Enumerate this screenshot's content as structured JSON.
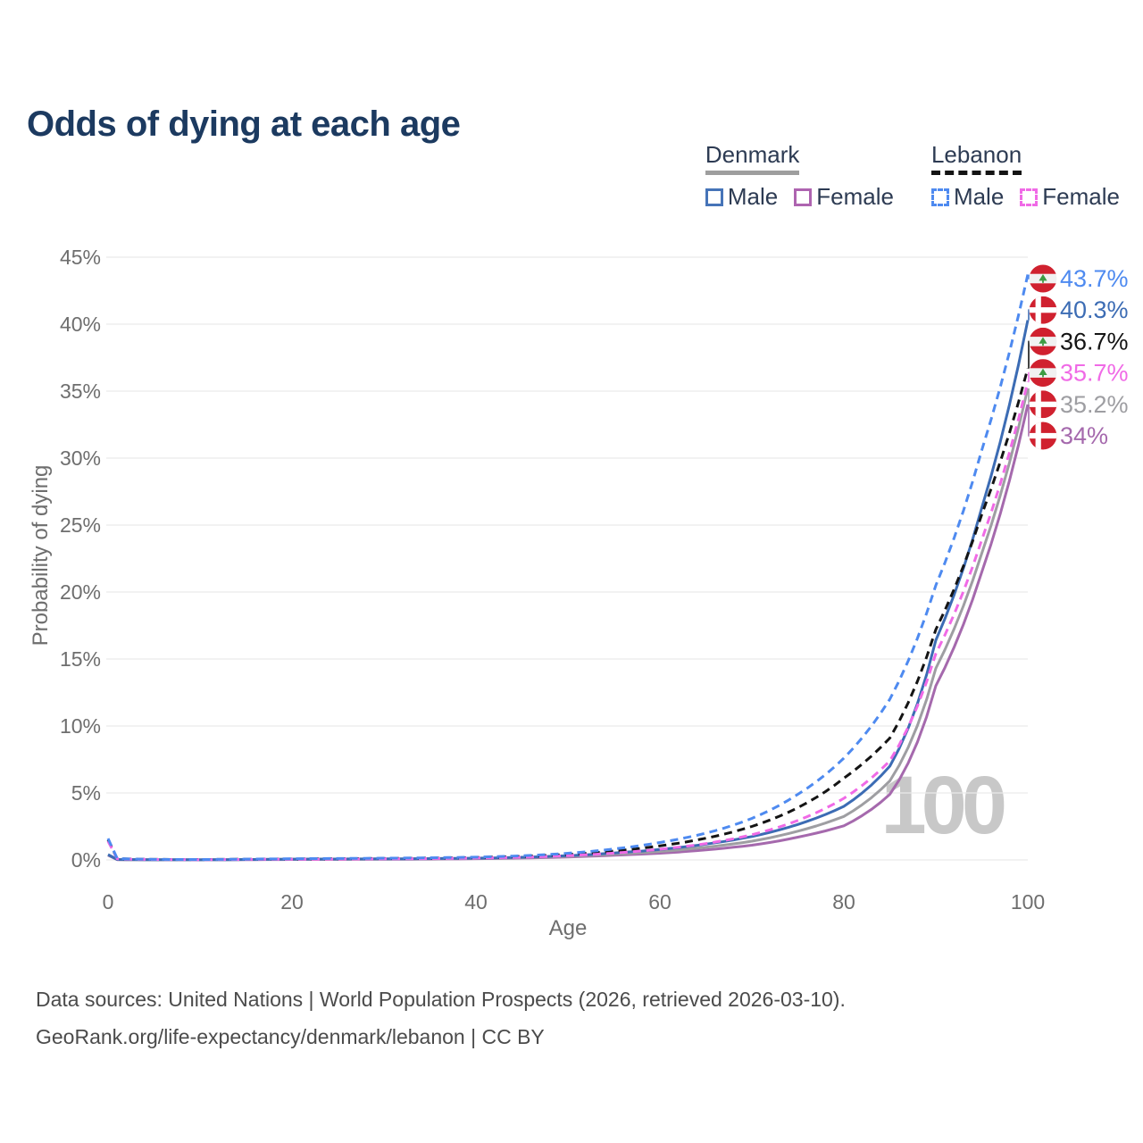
{
  "title": "Odds of dying at each age",
  "legend": {
    "groups": [
      {
        "name": "Denmark",
        "line_style": "solid",
        "underline_color": "#9e9e9e",
        "items": [
          {
            "label": "Male",
            "color": "#4674b8"
          },
          {
            "label": "Female",
            "color": "#ae64b0"
          }
        ]
      },
      {
        "name": "Lebanon",
        "line_style": "dashed",
        "underline_color": "#141414",
        "items": [
          {
            "label": "Male",
            "color": "#4e8af0"
          },
          {
            "label": "Female",
            "color": "#f06ae6"
          }
        ]
      }
    ]
  },
  "watermark": "100",
  "footer": {
    "line1": "Data sources: United Nations | World Population Prospects (2026, retrieved 2026-03-10).",
    "line2": "GeoRank.org/life-expectancy/denmark/lebanon | CC BY"
  },
  "chart_data": {
    "type": "line",
    "title": "Odds of dying at each age",
    "xlabel": "Age",
    "ylabel": "Probability of dying",
    "xlim": [
      0,
      100
    ],
    "ylim": [
      0,
      45
    ],
    "grid": "horizontal",
    "x_ticks": [
      0,
      20,
      40,
      60,
      80,
      100
    ],
    "y_tick_values": [
      0,
      5,
      10,
      15,
      20,
      25,
      30,
      35,
      40,
      45
    ],
    "y_tick_labels": [
      "0%",
      "5%",
      "10%",
      "15%",
      "20%",
      "25%",
      "30%",
      "35%",
      "40%",
      "45%"
    ],
    "x": [
      0,
      1,
      5,
      10,
      15,
      20,
      25,
      30,
      35,
      40,
      45,
      50,
      55,
      60,
      65,
      70,
      75,
      80,
      85,
      90,
      95,
      100
    ],
    "series": [
      {
        "name": "Denmark Female",
        "country": "Denmark",
        "sex": "Female",
        "color": "#a569ad",
        "dash": false,
        "flag": "denmark",
        "end_label": "34%",
        "values": [
          0.35,
          0.02,
          0.01,
          0.01,
          0.02,
          0.03,
          0.04,
          0.05,
          0.06,
          0.09,
          0.14,
          0.22,
          0.35,
          0.5,
          0.75,
          1.1,
          1.7,
          2.55,
          4.9,
          13.0,
          21.5,
          34.0
        ]
      },
      {
        "name": "Denmark Both sexes",
        "country": "Denmark",
        "sex": "Both",
        "color": "#9e9ea2",
        "dash": false,
        "flag": "denmark",
        "end_label": "35.2%",
        "values": [
          0.38,
          0.03,
          0.01,
          0.01,
          0.03,
          0.05,
          0.05,
          0.06,
          0.08,
          0.11,
          0.17,
          0.27,
          0.43,
          0.63,
          0.95,
          1.4,
          2.15,
          3.25,
          5.9,
          14.3,
          22.9,
          35.2
        ]
      },
      {
        "name": "Denmark Male",
        "country": "Denmark",
        "sex": "Male",
        "color": "#3c6cb4",
        "dash": false,
        "flag": "denmark",
        "end_label": "40.3%",
        "values": [
          0.4,
          0.03,
          0.02,
          0.01,
          0.03,
          0.06,
          0.07,
          0.08,
          0.1,
          0.13,
          0.2,
          0.32,
          0.52,
          0.78,
          1.18,
          1.75,
          2.65,
          4.0,
          7.0,
          16.4,
          26.3,
          40.3
        ]
      },
      {
        "name": "Lebanon Both sexes",
        "country": "Lebanon",
        "sex": "Both",
        "color": "#141414",
        "dash": true,
        "flag": "lebanon",
        "end_label": "36.7%",
        "values": [
          1.5,
          0.09,
          0.04,
          0.03,
          0.05,
          0.07,
          0.09,
          0.11,
          0.13,
          0.18,
          0.26,
          0.41,
          0.66,
          1.05,
          1.62,
          2.5,
          3.9,
          6.1,
          9.1,
          17.2,
          25.8,
          36.7
        ]
      },
      {
        "name": "Lebanon Female",
        "country": "Lebanon",
        "sex": "Female",
        "color": "#f06ae6",
        "dash": true,
        "flag": "lebanon",
        "end_label": "35.7%",
        "values": [
          1.4,
          0.08,
          0.03,
          0.02,
          0.04,
          0.05,
          0.06,
          0.08,
          0.1,
          0.14,
          0.2,
          0.32,
          0.51,
          0.8,
          1.22,
          1.88,
          2.95,
          4.6,
          7.4,
          15.4,
          23.9,
          35.7
        ]
      },
      {
        "name": "Lebanon Male",
        "country": "Lebanon",
        "sex": "Male",
        "color": "#4e8af0",
        "dash": true,
        "flag": "lebanon",
        "end_label": "43.7%",
        "values": [
          1.6,
          0.1,
          0.04,
          0.03,
          0.06,
          0.09,
          0.11,
          0.13,
          0.16,
          0.21,
          0.31,
          0.5,
          0.82,
          1.3,
          2.0,
          3.1,
          4.9,
          7.6,
          12.0,
          20.5,
          30.6,
          43.7
        ]
      }
    ]
  }
}
